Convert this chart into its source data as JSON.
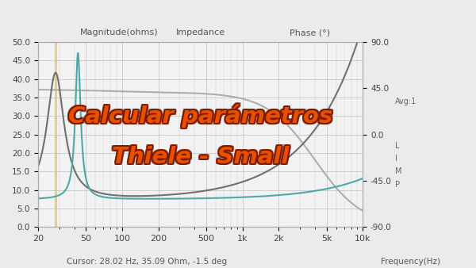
{
  "title_top_center": "Impedance",
  "ylabel_left": "Magnitude(ohms)",
  "ylabel_right": "Phase (°)",
  "xlabel": "Frequency(Hz)",
  "cursor_text": "Cursor: 28.02 Hz, 35.09 Ohm, -1.5 deg",
  "right_labels": [
    "90.0",
    "45.0",
    "0.0",
    "-45.0",
    "-90.0"
  ],
  "right_extra": [
    "Avg:1",
    "L",
    "I",
    "M",
    "P"
  ],
  "overlay_line1": "Calcular parámetros",
  "overlay_line2": "Thiele - Small",
  "overlay_color": "#e85000",
  "overlay_stroke": "#7a1a00",
  "bg_color": "#ebebeb",
  "plot_bg": "#f2f2f2",
  "grid_color": "#c8c8c8",
  "cursor_line_color": "#dfc070",
  "mag_peak_color": "#4fa8a8",
  "phase_color": "#aaaaaa",
  "imp_color": "#707070",
  "ylim_left": [
    0,
    50
  ],
  "ylim_right": [
    -90,
    90
  ],
  "freq_ticks": [
    20,
    50,
    100,
    200,
    500,
    1000,
    2000,
    5000,
    10000
  ],
  "freq_tick_labels": [
    "20",
    "50",
    "100",
    "200",
    "500",
    "1k",
    "2k",
    "5k",
    "10k"
  ],
  "yticks_left": [
    0.0,
    5.0,
    10.0,
    15.0,
    20.0,
    25.0,
    30.0,
    35.0,
    40.0,
    45.0,
    50.0
  ],
  "xmin": 20,
  "xmax": 10000,
  "cursor_freq": 28.02
}
